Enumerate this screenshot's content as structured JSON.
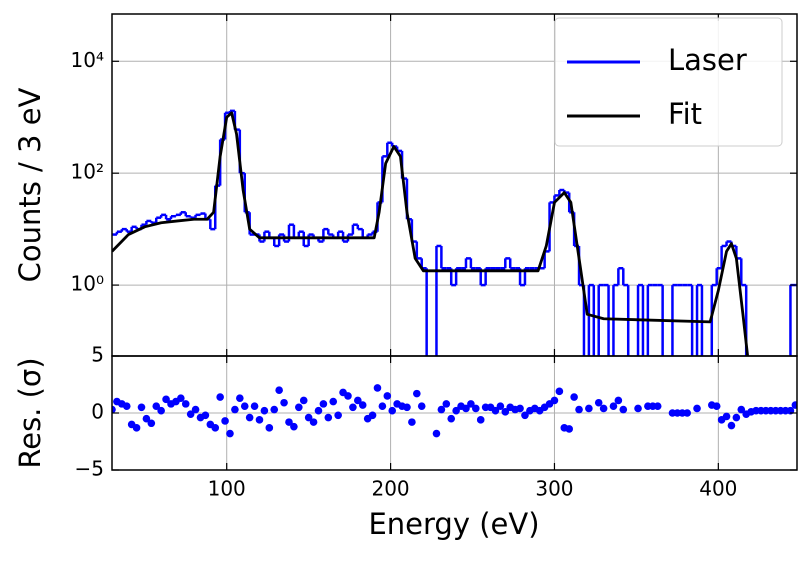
{
  "chart_data": [
    {
      "type": "line",
      "ylabel": "Counts / 3 eV",
      "log_y": true,
      "grid": true,
      "legend": "upper right",
      "xlim": [
        30,
        448
      ],
      "ylim": [
        0.054,
        70000
      ],
      "yticks": [
        {
          "value": 1,
          "label": "10⁰"
        },
        {
          "value": 100,
          "label": "10²"
        },
        {
          "value": 10000,
          "label": "10⁴"
        }
      ],
      "series": [
        {
          "name": "Laser",
          "color": "#0000ff",
          "style": "step",
          "x": [
            30,
            33,
            36,
            39,
            42,
            45,
            48,
            51,
            54,
            57,
            60,
            63,
            66,
            69,
            72,
            75,
            78,
            81,
            84,
            87,
            90,
            93,
            96,
            99,
            102,
            105,
            108,
            111,
            114,
            117,
            120,
            123,
            126,
            129,
            132,
            135,
            138,
            141,
            144,
            147,
            150,
            153,
            156,
            159,
            162,
            165,
            168,
            171,
            174,
            177,
            180,
            183,
            186,
            189,
            192,
            195,
            198,
            201,
            204,
            207,
            210,
            213,
            216,
            219,
            222,
            225,
            228,
            231,
            234,
            237,
            240,
            243,
            246,
            249,
            252,
            255,
            258,
            261,
            264,
            267,
            270,
            273,
            276,
            279,
            282,
            285,
            288,
            291,
            294,
            297,
            300,
            303,
            306,
            309,
            312,
            315,
            318,
            321,
            324,
            327,
            330,
            333,
            336,
            339,
            342,
            345,
            348,
            351,
            354,
            357,
            360,
            363,
            366,
            369,
            372,
            375,
            378,
            381,
            384,
            387,
            390,
            393,
            396,
            399,
            402,
            405,
            408,
            411,
            414,
            417,
            420,
            423,
            426,
            429,
            432,
            435,
            438,
            441,
            444,
            447
          ],
          "values": [
            8,
            9,
            10,
            9,
            11,
            10,
            12,
            14,
            13,
            16,
            18,
            15,
            17,
            18,
            20,
            17,
            16,
            18,
            19,
            15,
            10,
            60,
            400,
            1200,
            1300,
            600,
            100,
            20,
            8,
            8,
            6,
            9,
            7,
            5,
            8,
            6,
            12,
            7,
            9,
            5,
            8,
            7,
            6,
            10,
            8,
            7,
            9,
            6,
            8,
            12,
            10,
            7,
            8,
            9,
            30,
            200,
            350,
            300,
            250,
            80,
            15,
            6,
            3,
            2,
            0,
            0,
            5,
            2,
            2,
            1,
            2,
            2,
            3,
            2,
            2,
            1,
            2,
            2,
            2,
            2,
            3,
            2,
            2,
            1,
            2,
            2,
            2,
            2,
            4,
            30,
            40,
            50,
            45,
            20,
            5,
            1,
            0,
            1,
            0,
            1,
            1,
            0,
            1,
            2,
            1,
            0,
            0,
            1,
            0,
            1,
            1,
            1,
            0,
            0,
            1,
            1,
            1,
            1,
            0,
            1,
            0,
            0,
            1,
            2,
            5,
            6,
            5,
            3,
            1,
            0,
            0,
            0,
            0,
            0,
            0,
            0,
            0,
            0,
            1,
            1
          ]
        },
        {
          "name": "Fit",
          "color": "#000000",
          "style": "line",
          "x": [
            30,
            40,
            50,
            60,
            70,
            80,
            88,
            92,
            96,
            100,
            103,
            106,
            110,
            114,
            120,
            190,
            193,
            197,
            202,
            206,
            210,
            215,
            220,
            290,
            295,
            300,
            306,
            310,
            315,
            320,
            330,
            395,
            400,
            405,
            408,
            411,
            415,
            418
          ],
          "values": [
            4,
            8,
            11,
            13,
            14,
            15,
            15,
            20,
            200,
            1000,
            1200,
            500,
            50,
            10,
            7,
            7,
            20,
            150,
            300,
            200,
            20,
            3,
            1.8,
            1.8,
            5,
            30,
            45,
            30,
            3,
            0.3,
            0.25,
            0.22,
            0.8,
            4,
            5.5,
            3,
            0.3,
            0.05
          ]
        }
      ]
    },
    {
      "type": "scatter",
      "ylabel": "Res. (σ)",
      "xlabel": "Energy (eV)",
      "grid": true,
      "color": "#0000ff",
      "xlim": [
        30,
        448
      ],
      "ylim": [
        -5,
        5
      ],
      "xticks": [
        100,
        200,
        300,
        400
      ],
      "yticks": [
        {
          "value": -5,
          "label": "−5"
        },
        0,
        5
      ],
      "x": [
        30,
        33,
        36,
        39,
        42,
        45,
        48,
        51,
        54,
        57,
        60,
        63,
        66,
        69,
        72,
        75,
        78,
        81,
        84,
        87,
        90,
        93,
        96,
        99,
        102,
        105,
        108,
        111,
        114,
        117,
        120,
        123,
        126,
        129,
        132,
        135,
        138,
        141,
        144,
        147,
        150,
        153,
        156,
        159,
        162,
        165,
        168,
        171,
        174,
        177,
        180,
        183,
        186,
        189,
        192,
        195,
        198,
        201,
        204,
        207,
        210,
        213,
        216,
        219,
        222,
        225,
        228,
        231,
        234,
        237,
        240,
        243,
        246,
        249,
        252,
        255,
        258,
        261,
        264,
        267,
        270,
        273,
        276,
        279,
        282,
        285,
        288,
        291,
        294,
        297,
        300,
        303,
        306,
        309,
        312,
        315,
        318,
        321,
        324,
        327,
        330,
        333,
        336,
        339,
        342,
        345,
        348,
        351,
        354,
        357,
        360,
        363,
        366,
        369,
        372,
        375,
        378,
        381,
        384,
        387,
        390,
        393,
        396,
        399,
        402,
        405,
        408,
        411,
        414,
        417,
        420,
        423,
        426,
        429,
        432,
        435,
        438,
        441,
        444,
        447
      ],
      "values": [
        0.3,
        1,
        0.8,
        0.6,
        -1,
        -1.3,
        0.5,
        -0.5,
        -0.9,
        0.6,
        0.2,
        1.2,
        0.8,
        1,
        1.3,
        0.8,
        -0.1,
        0.3,
        -0.4,
        -0.2,
        -1,
        -1.3,
        1.4,
        -0.7,
        -1.8,
        0.3,
        1.3,
        0.6,
        -0.4,
        0.6,
        -0.6,
        0.2,
        -1.3,
        0.3,
        2,
        0.9,
        -0.8,
        -1.2,
        0.5,
        1.1,
        -0.4,
        -0.8,
        0.2,
        0.8,
        -0.4,
        1,
        -0.2,
        1.8,
        1.5,
        0.5,
        1.1,
        0.7,
        -0.5,
        -0.2,
        2.2,
        0.6,
        1.5,
        0.2,
        0.8,
        0.6,
        0.5,
        -0.8,
        1.7,
        0.6,
        null,
        null,
        -1.8,
        0.3,
        0.8,
        -0.5,
        0.2,
        0.6,
        0.4,
        0.8,
        0.4,
        -0.6,
        0.5,
        0.5,
        0.2,
        0.6,
        0.1,
        0.5,
        0.3,
        0.4,
        -0.2,
        0.2,
        0.4,
        0.2,
        0.5,
        0.8,
        1.1,
        1.9,
        -1.3,
        -1.4,
        1.4,
        0.3,
        null,
        0.4,
        null,
        0.9,
        0.4,
        null,
        0.6,
        1.1,
        0.3,
        null,
        null,
        0.4,
        null,
        0.6,
        0.6,
        0.6,
        null,
        null,
        0,
        0,
        0,
        0,
        null,
        0.4,
        null,
        null,
        0.7,
        0.6,
        -0.6,
        -0.3,
        -1.1,
        -0.4,
        0.3,
        -0.1,
        0.1,
        0.2,
        0.2,
        0.2,
        0.2,
        0.2,
        0.2,
        0.2,
        0.2,
        0.7
      ]
    }
  ]
}
